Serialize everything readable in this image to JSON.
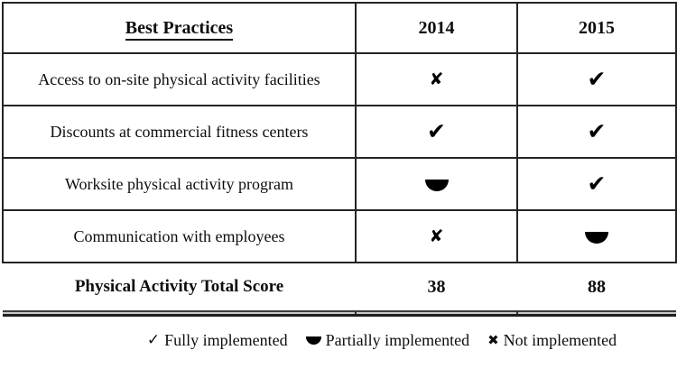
{
  "table": {
    "columns": [
      "Best Practices",
      "2014",
      "2015"
    ],
    "rows": [
      {
        "label": "Access to on-site physical activity facilities",
        "y2014": "not-implemented",
        "y2015": "fully-implemented"
      },
      {
        "label": "Discounts at commercial fitness centers",
        "y2014": "fully-implemented",
        "y2015": "fully-implemented"
      },
      {
        "label": "Worksite physical activity program",
        "y2014": "partially-implemented",
        "y2015": "fully-implemented"
      },
      {
        "label": "Communication with employees",
        "y2014": "not-implemented",
        "y2015": "partially-implemented"
      }
    ],
    "total_row": {
      "label": "Physical Activity Total Score",
      "y2014": "38",
      "y2015": "88"
    }
  },
  "legend": {
    "items": [
      {
        "symbol": "check",
        "label": "Fully implemented"
      },
      {
        "symbol": "half-circle",
        "label": "Partially implemented"
      },
      {
        "symbol": "x",
        "label": "Not implemented"
      }
    ]
  },
  "symbols": {
    "cell_check": "✔",
    "cell_x": "✘",
    "legend_check": "✓",
    "legend_x": "✖"
  },
  "colors": {
    "ink": "#0d0d0d",
    "border": "#242424",
    "rule_gap": "#c8c8c8",
    "background": "#ffffff"
  },
  "chart_data": {
    "type": "table",
    "title": "Best Practices scorecard",
    "columns": [
      "Best Practices",
      "2014",
      "2015"
    ],
    "rows": [
      [
        "Access to on-site physical activity facilities",
        "not-implemented",
        "fully-implemented"
      ],
      [
        "Discounts at commercial fitness centers",
        "fully-implemented",
        "fully-implemented"
      ],
      [
        "Worksite physical activity program",
        "partially-implemented",
        "fully-implemented"
      ],
      [
        "Communication with employees",
        "not-implemented",
        "partially-implemented"
      ],
      [
        "Physical Activity Total Score",
        "38",
        "88"
      ]
    ]
  }
}
